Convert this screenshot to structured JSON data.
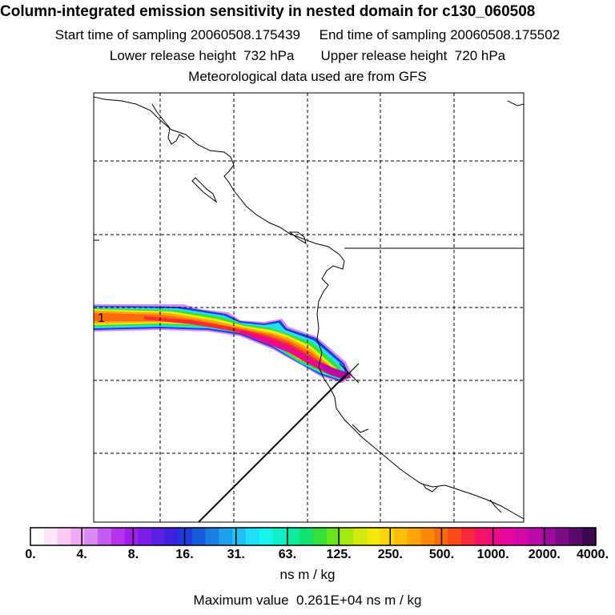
{
  "header": {
    "title": "Column-integrated emission sensitivity in nested domain for c130_060508",
    "times_line": "Start time of sampling 20060508.175439     End time of sampling 20060508.175502",
    "heights_line": "Lower release height  732 hPa       Upper release height  720 hPa",
    "met_line": "Meteorological data used are from GFS"
  },
  "map": {
    "plume_label": "1",
    "release_marker": "x-marker"
  },
  "colorbar": {
    "tick_labels": [
      "0.",
      "4.",
      "8.",
      "16.",
      "31.",
      "63.",
      "125.",
      "250.",
      "500.",
      "1000.",
      "2000.",
      "4000."
    ],
    "colors": [
      "#ffffff",
      "#fbe5fb",
      "#f6cbf6",
      "#eeaaf4",
      "#d98af2",
      "#c55cf0",
      "#b534ec",
      "#a21ee8",
      "#7a1de6",
      "#5a1fe2",
      "#3a22de",
      "#1e3cdc",
      "#1a5adc",
      "#1c7ee2",
      "#1ea0ea",
      "#20c0f2",
      "#1fe0f8",
      "#18f4ee",
      "#10f0c8",
      "#0cea9c",
      "#12e070",
      "#36e03c",
      "#6ae21c",
      "#a6e812",
      "#d4ea0e",
      "#f2e80a",
      "#fcd60a",
      "#fcbe0a",
      "#fca40a",
      "#fc880a",
      "#fc6a0e",
      "#fc4a18",
      "#f82a3a",
      "#f21466",
      "#ec0a88",
      "#e4089e",
      "#d408a8",
      "#bc0aa8",
      "#9c0c9c",
      "#7a0c86",
      "#5a0a6a",
      "#3c084c"
    ],
    "units": "ns m / kg"
  },
  "footer": {
    "max_value": "Maximum value  0.261E+04 ns m / kg"
  }
}
